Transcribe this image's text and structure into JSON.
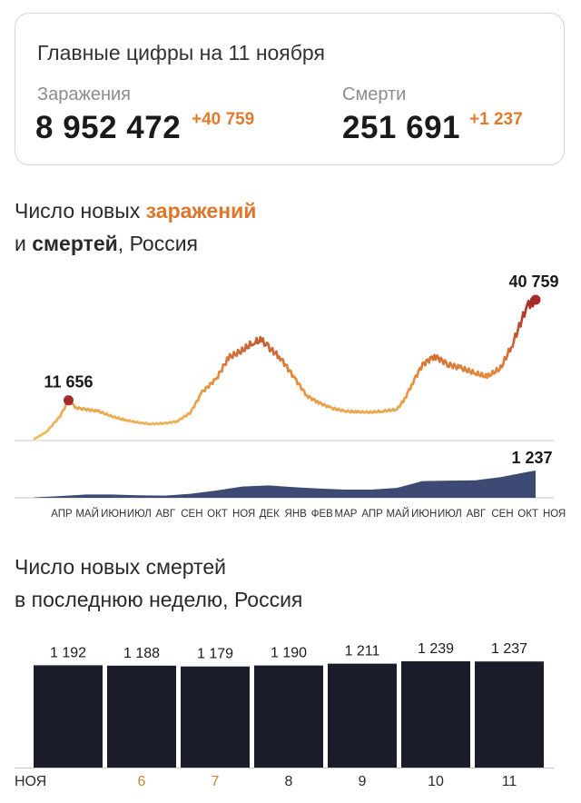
{
  "card": {
    "title": "Главные цифры на 11 ноября",
    "infections": {
      "label": "Заражения",
      "value": "8 952 472",
      "delta": "+40 759"
    },
    "deaths": {
      "label": "Смерти",
      "value": "251 691",
      "delta": "+1 237"
    }
  },
  "chart1": {
    "title_line1_prefix": "Число новых ",
    "title_line1_highlight": "заражений",
    "title_line2_prefix": "и ",
    "title_line2_bold": "смертей",
    "title_line2_suffix": ", Россия"
  },
  "chart2": {
    "title_line1": "Число новых смертей",
    "title_line2": "в последнюю неделю, Россия"
  },
  "colors": {
    "infections_low": "#f0c060",
    "infections_mid": "#e58a3a",
    "infections_high": "#a52a2a",
    "deaths_area": "#3d4a73",
    "bars": "#1b1c29",
    "weekend_label": "#c8873a"
  },
  "chart_data": [
    {
      "type": "line",
      "series": [
        {
          "name": "заражения",
          "x": [
            "2020-04-01",
            "2020-04-15",
            "2020-05-01",
            "2020-05-11",
            "2020-05-20",
            "2020-06-01",
            "2020-06-15",
            "2020-07-01",
            "2020-07-15",
            "2020-08-01",
            "2020-08-15",
            "2020-09-01",
            "2020-09-15",
            "2020-10-01",
            "2020-10-15",
            "2020-11-01",
            "2020-11-15",
            "2020-12-01",
            "2020-12-15",
            "2020-12-24",
            "2021-01-01",
            "2021-01-15",
            "2021-02-01",
            "2021-02-15",
            "2021-03-01",
            "2021-03-15",
            "2021-04-01",
            "2021-04-15",
            "2021-05-01",
            "2021-05-15",
            "2021-06-01",
            "2021-06-10",
            "2021-06-20",
            "2021-07-01",
            "2021-07-15",
            "2021-08-01",
            "2021-08-15",
            "2021-09-01",
            "2021-09-15",
            "2021-10-01",
            "2021-10-15",
            "2021-11-01",
            "2021-11-06",
            "2021-11-11"
          ],
          "values": [
            500,
            2500,
            7000,
            11656,
            9500,
            9000,
            8500,
            7000,
            6000,
            5200,
            4800,
            5000,
            5500,
            8000,
            14000,
            18000,
            24000,
            26000,
            28500,
            29000,
            27000,
            24000,
            18000,
            13000,
            11000,
            9500,
            8500,
            8300,
            8200,
            8500,
            9000,
            12000,
            17000,
            22000,
            24500,
            22000,
            21000,
            19500,
            18500,
            21000,
            28000,
            39000,
            40000,
            40759
          ]
        },
        {
          "name": "смерти",
          "x": [
            "2020-04-01",
            "2020-05-01",
            "2020-06-01",
            "2020-07-01",
            "2020-08-01",
            "2020-09-01",
            "2020-10-01",
            "2020-11-01",
            "2020-12-01",
            "2021-01-01",
            "2021-02-01",
            "2021-03-01",
            "2021-04-01",
            "2021-05-01",
            "2021-06-01",
            "2021-07-01",
            "2021-08-01",
            "2021-09-01",
            "2021-10-01",
            "2021-11-01",
            "2021-11-11"
          ],
          "values": [
            20,
            80,
            150,
            150,
            110,
            100,
            180,
            330,
            510,
            560,
            480,
            420,
            370,
            370,
            450,
            760,
            780,
            790,
            940,
            1170,
            1237
          ]
        }
      ],
      "x_ticks": [
        "АПР",
        "МАЙ",
        "ИЮН",
        "ИЮЛ",
        "АВГ",
        "СЕН",
        "ОКТ",
        "НОЯ",
        "ДЕК",
        "ЯНВ",
        "ФЕВ",
        "МАР",
        "АПР",
        "МАЙ",
        "ИЮН",
        "ИЮЛ",
        "АВГ",
        "СЕН",
        "ОКТ",
        "НОЯ"
      ],
      "annotations": [
        {
          "series": "заражения",
          "x": "2020-05-11",
          "label": "11 656"
        },
        {
          "series": "заражения",
          "x": "2021-11-11",
          "label": "40 759"
        },
        {
          "series": "смерти",
          "x": "2021-11-11",
          "label": "1 237"
        }
      ]
    },
    {
      "type": "bar",
      "categories": [
        "НОЯ",
        "6",
        "7",
        "8",
        "9",
        "10",
        "11"
      ],
      "values": [
        1192,
        1188,
        1179,
        1190,
        1211,
        1239,
        1237
      ],
      "value_labels": [
        "1 192",
        "1 188",
        "1 179",
        "1 190",
        "1 211",
        "1 239",
        "1 237"
      ],
      "weekend_categories": [
        "6",
        "7"
      ],
      "ylim": [
        0,
        1239
      ]
    }
  ]
}
